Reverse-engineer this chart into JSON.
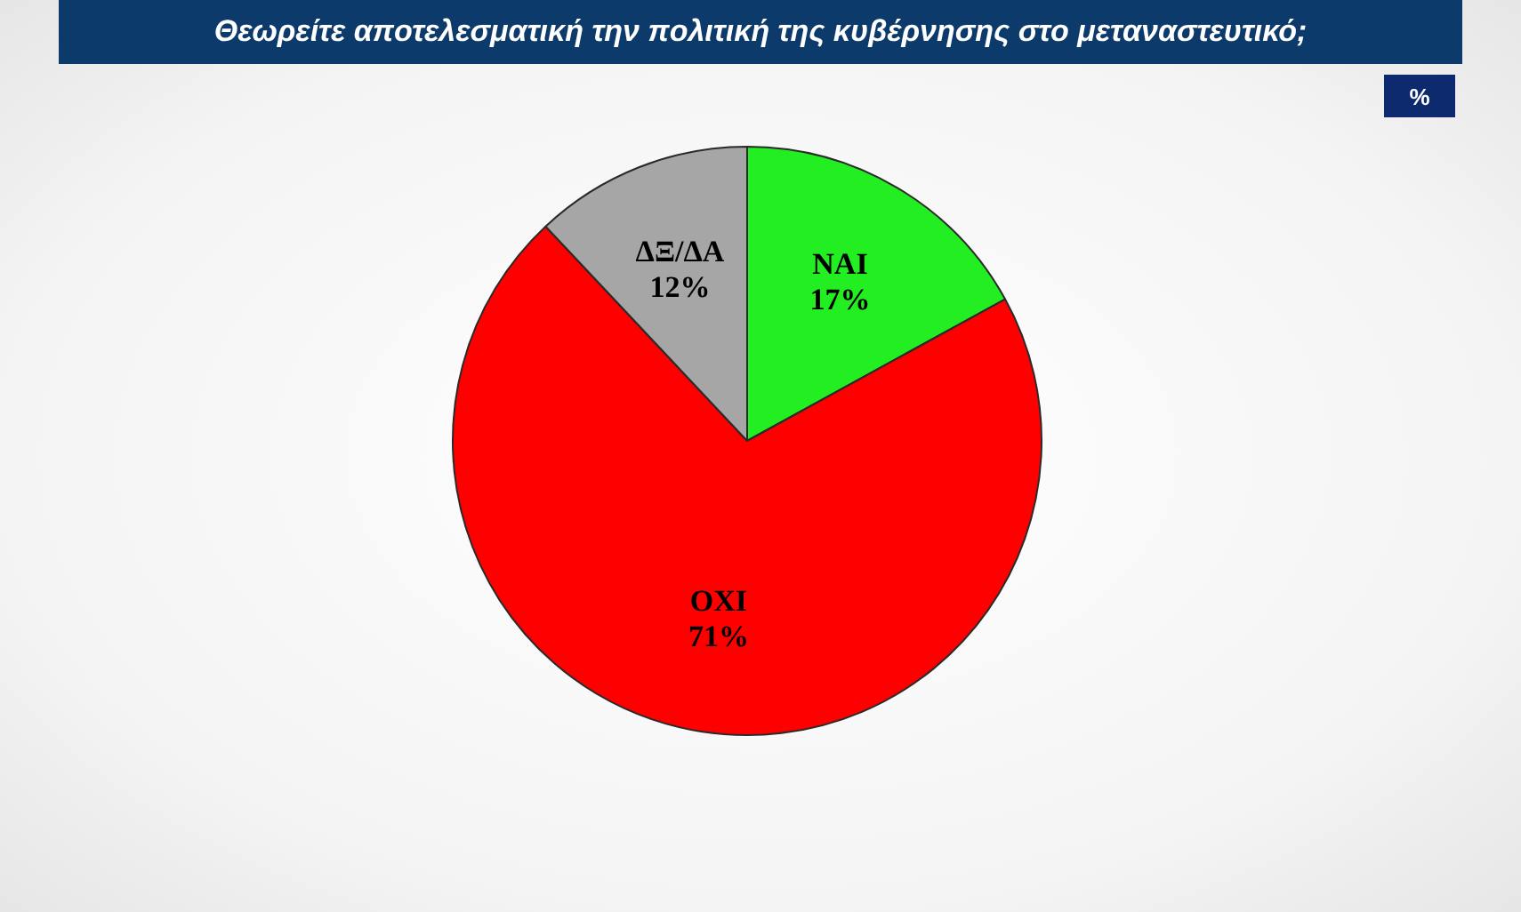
{
  "chart_data": {
    "type": "pie",
    "title": "Θεωρείτε αποτελεσματική την πολιτική της κυβέρνησης στο μεταναστευτικό;",
    "subtitle": "%",
    "categories": [
      "ΝΑΙ",
      "ΟΧΙ",
      "ΔΞ/ΔΑ"
    ],
    "values": [
      17,
      71,
      12
    ],
    "colors": [
      "#22ee22",
      "#ff0000",
      "#a6a6a6"
    ],
    "value_labels": [
      "17%",
      "71%",
      "12%"
    ]
  }
}
